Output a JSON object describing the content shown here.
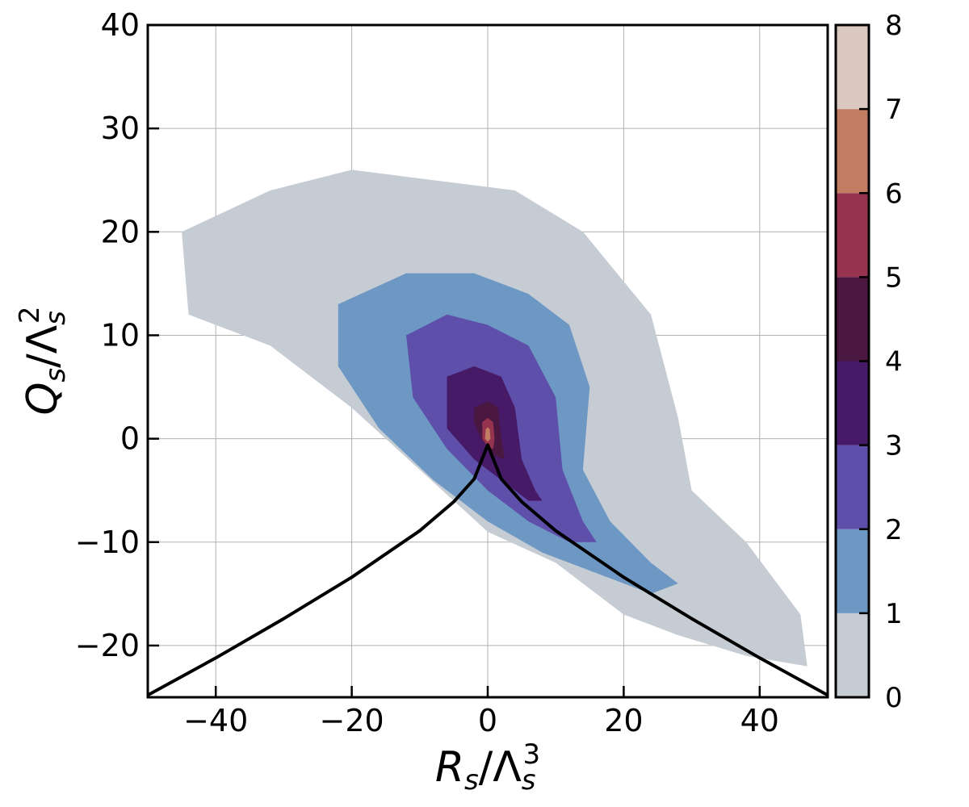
{
  "chart_data": {
    "type": "heatmap",
    "subtype": "filled-contour",
    "xlabel": {
      "base": "R",
      "sub": "s",
      "sep": "/Λ",
      "sub2": "s",
      "sup": "3"
    },
    "ylabel": {
      "base": "Q",
      "sub": "s",
      "sep": "/Λ",
      "sub2": "s",
      "sup": "2"
    },
    "xlim": [
      -50,
      50
    ],
    "ylim": [
      -25,
      40
    ],
    "xticks": [
      -40,
      -20,
      0,
      20,
      40
    ],
    "yticks": [
      -20,
      -10,
      0,
      10,
      20,
      30,
      40
    ],
    "xtick_labels": [
      "−40",
      "−20",
      "0",
      "20",
      "40"
    ],
    "ytick_labels": [
      "−20",
      "−10",
      "0",
      "10",
      "20",
      "30",
      "40"
    ],
    "grid": true,
    "colorbar": {
      "levels": [
        0,
        1,
        2,
        3,
        4,
        5,
        6,
        7,
        8
      ],
      "labels": [
        "0",
        "1",
        "2",
        "3",
        "4",
        "5",
        "6",
        "7",
        "8"
      ],
      "colors": [
        "#c5ccd4",
        "#6e98c4",
        "#5d4faa",
        "#461a66",
        "#4a1741",
        "#963450",
        "#c27d63",
        "#dbc8c0"
      ]
    },
    "contour_regions": [
      {
        "level": 1,
        "polygon": [
          [
            -45,
            20
          ],
          [
            -32,
            24
          ],
          [
            -20,
            26
          ],
          [
            -8,
            25
          ],
          [
            4,
            24
          ],
          [
            14,
            20
          ],
          [
            24,
            12
          ],
          [
            28,
            2
          ],
          [
            30,
            -5
          ],
          [
            38,
            -10
          ],
          [
            46,
            -17
          ],
          [
            47,
            -22
          ],
          [
            38,
            -21
          ],
          [
            28,
            -19
          ],
          [
            20,
            -17
          ],
          [
            10,
            -12
          ],
          [
            0,
            -9
          ],
          [
            -10,
            -3
          ],
          [
            -20,
            3
          ],
          [
            -32,
            9
          ],
          [
            -44,
            12
          ]
        ]
      },
      {
        "level": 2,
        "polygon": [
          [
            -22,
            13
          ],
          [
            -12,
            16
          ],
          [
            -2,
            16
          ],
          [
            6,
            14
          ],
          [
            12,
            11
          ],
          [
            15,
            5
          ],
          [
            14,
            -3
          ],
          [
            18,
            -8
          ],
          [
            24,
            -12
          ],
          [
            28,
            -14
          ],
          [
            24,
            -15
          ],
          [
            16,
            -13
          ],
          [
            8,
            -11
          ],
          [
            0,
            -8
          ],
          [
            -8,
            -4
          ],
          [
            -16,
            1
          ],
          [
            -22,
            7
          ]
        ]
      },
      {
        "level": 3,
        "polygon": [
          [
            -12,
            10
          ],
          [
            -6,
            12
          ],
          [
            0,
            11
          ],
          [
            6,
            9
          ],
          [
            10,
            4
          ],
          [
            11,
            -3
          ],
          [
            14,
            -8
          ],
          [
            16,
            -10
          ],
          [
            12,
            -10
          ],
          [
            6,
            -8
          ],
          [
            0,
            -5
          ],
          [
            -6,
            -1
          ],
          [
            -11,
            4
          ]
        ]
      },
      {
        "level": 4,
        "polygon": [
          [
            -6,
            6
          ],
          [
            -2,
            7
          ],
          [
            2,
            6
          ],
          [
            4,
            3
          ],
          [
            5,
            -2
          ],
          [
            7,
            -5
          ],
          [
            8,
            -6
          ],
          [
            6,
            -6
          ],
          [
            2,
            -4
          ],
          [
            -2,
            -2
          ],
          [
            -6,
            1
          ]
        ]
      },
      {
        "level": 5,
        "polygon": [
          [
            -2,
            3
          ],
          [
            0,
            3.6
          ],
          [
            1.5,
            3
          ],
          [
            2,
            0
          ],
          [
            2.5,
            -2
          ],
          [
            1,
            -1.6
          ],
          [
            -1,
            0
          ],
          [
            -2,
            1.5
          ]
        ]
      },
      {
        "level": 6,
        "polygon": [
          [
            -0.8,
            1.6
          ],
          [
            0,
            2
          ],
          [
            0.8,
            1.6
          ],
          [
            1,
            0
          ],
          [
            0.8,
            -1
          ],
          [
            0,
            -0.8
          ],
          [
            -0.8,
            0
          ]
        ]
      },
      {
        "level": 7,
        "polygon": [
          [
            -0.3,
            0.9
          ],
          [
            0,
            1.1
          ],
          [
            0.3,
            0.9
          ],
          [
            0.4,
            0
          ],
          [
            0,
            -0.3
          ],
          [
            -0.4,
            0
          ]
        ]
      }
    ],
    "curve": {
      "name": "",
      "x_range": [
        -50,
        50
      ],
      "samples": [
        [
          -50,
          -24.8
        ],
        [
          -40,
          -21.2
        ],
        [
          -30,
          -17.4
        ],
        [
          -20,
          -13.4
        ],
        [
          -10,
          -8.9
        ],
        [
          -5,
          -6.1
        ],
        [
          -2,
          -3.9
        ],
        [
          0,
          -0.6
        ],
        [
          2,
          -3.9
        ],
        [
          5,
          -6.1
        ],
        [
          10,
          -8.9
        ],
        [
          20,
          -13.4
        ],
        [
          30,
          -17.4
        ],
        [
          40,
          -21.2
        ],
        [
          50,
          -24.8
        ]
      ]
    }
  }
}
